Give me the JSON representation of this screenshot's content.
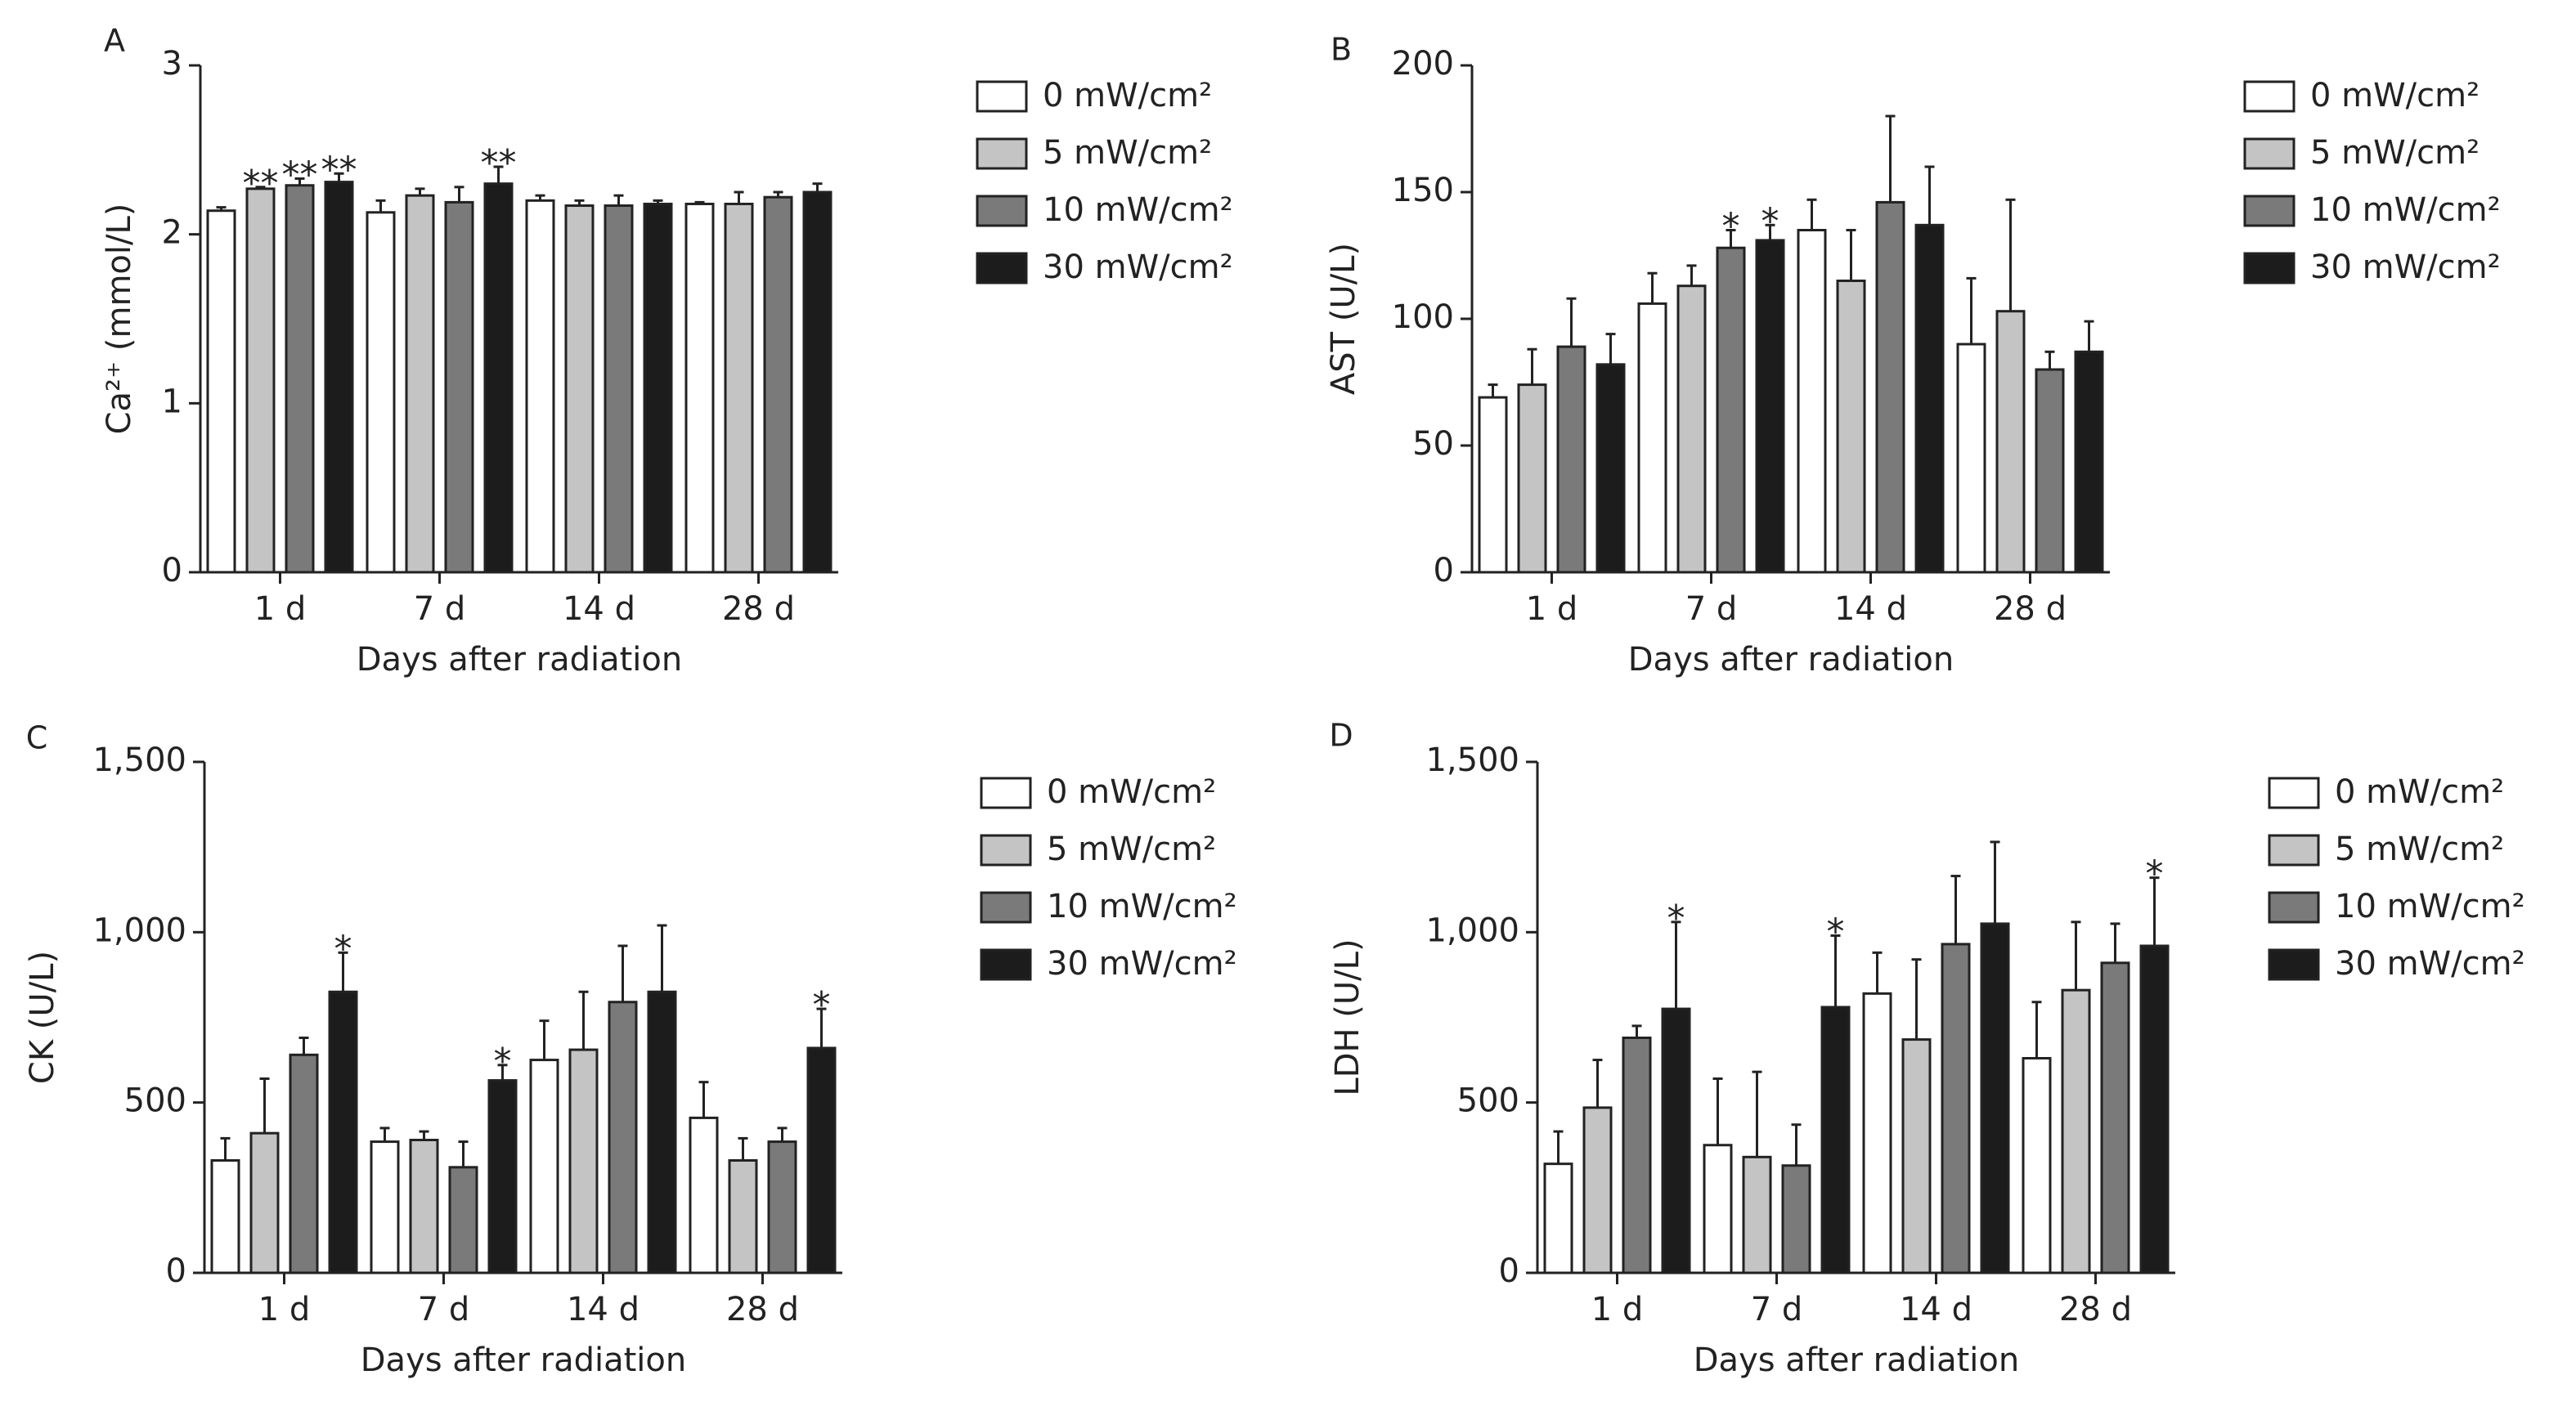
{
  "legend_items": [
    {
      "label": "0 mW/cm²",
      "color": "#ffffff"
    },
    {
      "label": "5 mW/cm²",
      "color": "#c4c4c4"
    },
    {
      "label": "10 mW/cm²",
      "color": "#7a7a7a"
    },
    {
      "label": "30 mW/cm²",
      "color": "#1c1c1c"
    }
  ],
  "chart_data": [
    {
      "panel": "A",
      "type": "bar",
      "ylabel": "Ca²⁺ (mmol/L)",
      "xlabel": "Days after radiation",
      "categories": [
        "1 d",
        "7 d",
        "14 d",
        "28 d"
      ],
      "ylim": [
        0,
        3
      ],
      "yticks": [
        0,
        1,
        2,
        3
      ],
      "ytick_labels": [
        "0",
        "1",
        "2",
        "3"
      ],
      "series": [
        {
          "name": "0 mW/cm²",
          "values": [
            2.14,
            2.13,
            2.2,
            2.18
          ],
          "errors": [
            0.02,
            0.07,
            0.03,
            0.01
          ],
          "sig": [
            "",
            "",
            "",
            ""
          ]
        },
        {
          "name": "5 mW/cm²",
          "values": [
            2.27,
            2.23,
            2.17,
            2.18
          ],
          "errors": [
            0.01,
            0.04,
            0.03,
            0.07
          ],
          "sig": [
            "**",
            "",
            "",
            ""
          ]
        },
        {
          "name": "10 mW/cm²",
          "values": [
            2.29,
            2.19,
            2.17,
            2.22
          ],
          "errors": [
            0.04,
            0.09,
            0.06,
            0.03
          ],
          "sig": [
            "**",
            "",
            "",
            ""
          ]
        },
        {
          "name": "30 mW/cm²",
          "values": [
            2.31,
            2.3,
            2.18,
            2.25
          ],
          "errors": [
            0.05,
            0.1,
            0.02,
            0.05
          ],
          "sig": [
            "**",
            "**",
            "",
            ""
          ]
        }
      ]
    },
    {
      "panel": "B",
      "type": "bar",
      "ylabel": "AST (U/L)",
      "xlabel": "Days after radiation",
      "categories": [
        "1 d",
        "7 d",
        "14 d",
        "28 d"
      ],
      "ylim": [
        0,
        200
      ],
      "yticks": [
        0,
        50,
        100,
        150,
        200
      ],
      "ytick_labels": [
        "0",
        "50",
        "100",
        "150",
        "200"
      ],
      "series": [
        {
          "name": "0 mW/cm²",
          "values": [
            69,
            106,
            135,
            90
          ],
          "errors": [
            5,
            12,
            12,
            26
          ],
          "sig": [
            "",
            "",
            "",
            ""
          ]
        },
        {
          "name": "5 mW/cm²",
          "values": [
            74,
            113,
            115,
            103
          ],
          "errors": [
            14,
            8,
            20,
            44
          ],
          "sig": [
            "",
            "",
            "",
            ""
          ]
        },
        {
          "name": "10 mW/cm²",
          "values": [
            89,
            128,
            146,
            80
          ],
          "errors": [
            19,
            7,
            34,
            7
          ],
          "sig": [
            "",
            "*",
            "",
            ""
          ]
        },
        {
          "name": "30 mW/cm²",
          "values": [
            82,
            131,
            137,
            87
          ],
          "errors": [
            12,
            6,
            23,
            12
          ],
          "sig": [
            "",
            "*",
            "",
            ""
          ]
        }
      ]
    },
    {
      "panel": "C",
      "type": "bar",
      "ylabel": "CK (U/L)",
      "xlabel": "Days after radiation",
      "categories": [
        "1 d",
        "7 d",
        "14 d",
        "28 d"
      ],
      "ylim": [
        0,
        1500
      ],
      "yticks": [
        0,
        500,
        1000,
        1500
      ],
      "ytick_labels": [
        "0",
        "500",
        "1,000",
        "1,500"
      ],
      "series": [
        {
          "name": "0 mW/cm²",
          "values": [
            330,
            385,
            625,
            455
          ],
          "errors": [
            65,
            40,
            115,
            105
          ],
          "sig": [
            "",
            "",
            "",
            ""
          ]
        },
        {
          "name": "5 mW/cm²",
          "values": [
            410,
            390,
            655,
            330
          ],
          "errors": [
            160,
            25,
            170,
            65
          ],
          "sig": [
            "",
            "",
            "",
            ""
          ]
        },
        {
          "name": "10 mW/cm²",
          "values": [
            640,
            310,
            795,
            385
          ],
          "errors": [
            50,
            75,
            165,
            40
          ],
          "sig": [
            "",
            "",
            "",
            ""
          ]
        },
        {
          "name": "30 mW/cm²",
          "values": [
            825,
            565,
            825,
            660
          ],
          "errors": [
            115,
            45,
            195,
            115
          ],
          "sig": [
            "*",
            "*",
            "",
            "*"
          ]
        }
      ]
    },
    {
      "panel": "D",
      "type": "bar",
      "ylabel": "LDH (U/L)",
      "xlabel": "Days after radiation",
      "categories": [
        "1 d",
        "7 d",
        "14 d",
        "28 d"
      ],
      "ylim": [
        0,
        1500
      ],
      "yticks": [
        0,
        500,
        1000,
        1500
      ],
      "ytick_labels": [
        "0",
        "500",
        "1,000",
        "1,500"
      ],
      "series": [
        {
          "name": "0 mW/cm²",
          "values": [
            320,
            375,
            820,
            630
          ],
          "errors": [
            95,
            195,
            120,
            165
          ],
          "sig": [
            "",
            "",
            "",
            ""
          ]
        },
        {
          "name": "5 mW/cm²",
          "values": [
            485,
            340,
            685,
            830
          ],
          "errors": [
            140,
            250,
            235,
            200
          ],
          "sig": [
            "",
            "",
            "",
            ""
          ]
        },
        {
          "name": "10 mW/cm²",
          "values": [
            690,
            315,
            965,
            910
          ],
          "errors": [
            35,
            120,
            200,
            115
          ],
          "sig": [
            "",
            "",
            "",
            ""
          ]
        },
        {
          "name": "30 mW/cm²",
          "values": [
            775,
            780,
            1025,
            960
          ],
          "errors": [
            255,
            210,
            240,
            200
          ],
          "sig": [
            "*",
            "*",
            "",
            "*"
          ]
        }
      ]
    }
  ]
}
